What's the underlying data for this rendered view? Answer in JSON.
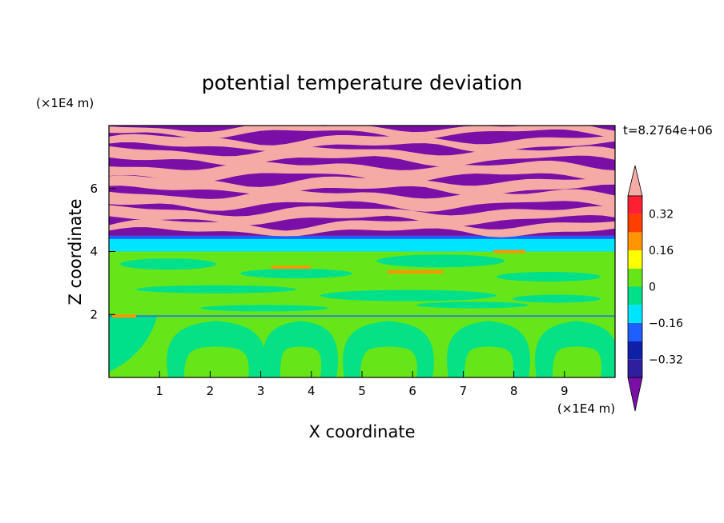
{
  "chart_data": {
    "type": "heatmap",
    "title": "potential temperature deviation",
    "time_label": "t=8.2764e+06",
    "xlabel": "X coordinate",
    "ylabel": "Z coordinate",
    "x_unit": "(×1E4 m)",
    "y_unit": "(×1E4 m)",
    "xlim": [
      0,
      10
    ],
    "ylim": [
      0,
      8
    ],
    "x_ticks": [
      "1",
      "2",
      "3",
      "4",
      "5",
      "6",
      "7",
      "8",
      "9"
    ],
    "y_ticks": [
      "2",
      "4",
      "6"
    ],
    "colorbar": {
      "levels": [
        -0.4,
        -0.32,
        -0.24,
        -0.16,
        -0.08,
        0,
        0.08,
        0.16,
        0.24,
        0.32,
        0.4
      ],
      "labels": [
        "0.32",
        "0.16",
        "0",
        "−0.16",
        "−0.32"
      ],
      "label_values": [
        0.32,
        0.16,
        0,
        -0.16,
        -0.32
      ],
      "colors": [
        "#7a0fa8",
        "#2f1f9e",
        "#0f1fa8",
        "#1f5fff",
        "#00e5ff",
        "#00e08a",
        "#66e619",
        "#ffff00",
        "#ff9500",
        "#ff3f00",
        "#ff1f33",
        "#f5aaa6"
      ],
      "extend": "both"
    },
    "bands": [
      {
        "name": "lower layer",
        "z": [
          0,
          1.95
        ],
        "value_range": [
          -0.08,
          0.08
        ]
      },
      {
        "name": "mid layer",
        "z": [
          1.95,
          4.0
        ],
        "value_range": [
          -0.08,
          0.08
        ]
      },
      {
        "name": "transition layer",
        "z": [
          4.0,
          4.5
        ],
        "value_range": [
          -0.16,
          -0.08
        ]
      },
      {
        "name": "upper layer",
        "z": [
          4.5,
          8.0
        ],
        "value_range": [
          -0.4,
          0.4
        ]
      }
    ]
  }
}
